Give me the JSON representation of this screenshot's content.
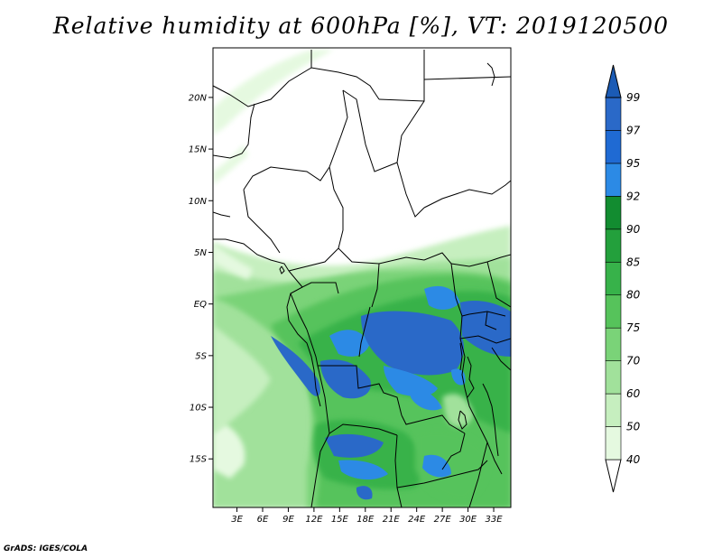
{
  "title": "Relative humidity at 600hPa [%], VT: 2019120500",
  "credit": "GrADS: IGES/COLA",
  "map": {
    "lat_ticks": [
      {
        "lat": 20,
        "label": "20N"
      },
      {
        "lat": 15,
        "label": "15N"
      },
      {
        "lat": 10,
        "label": "10N"
      },
      {
        "lat": 5,
        "label": "5N"
      },
      {
        "lat": 0,
        "label": "EQ"
      },
      {
        "lat": -5,
        "label": "5S"
      },
      {
        "lat": -10,
        "label": "10S"
      },
      {
        "lat": -15,
        "label": "15S"
      }
    ],
    "lon_ticks": [
      {
        "lon": 3,
        "label": "3E"
      },
      {
        "lon": 6,
        "label": "6E"
      },
      {
        "lon": 9,
        "label": "9E"
      },
      {
        "lon": 12,
        "label": "12E"
      },
      {
        "lon": 15,
        "label": "15E"
      },
      {
        "lon": 18,
        "label": "18E"
      },
      {
        "lon": 21,
        "label": "21E"
      },
      {
        "lon": 24,
        "label": "24E"
      },
      {
        "lon": 27,
        "label": "27E"
      },
      {
        "lon": 30,
        "label": "30E"
      },
      {
        "lon": 33,
        "label": "33E"
      }
    ],
    "lon_range": [
      0.2,
      35.0
    ],
    "lat_range": [
      -19.7,
      24.8
    ]
  },
  "colorbar": {
    "levels": [
      "40",
      "50",
      "60",
      "70",
      "75",
      "80",
      "85",
      "90",
      "92",
      "95",
      "97",
      "99"
    ],
    "colors": [
      "#ffffff",
      "#e5f9e0",
      "#c6efbf",
      "#a1e19b",
      "#7ad378",
      "#56c35b",
      "#37b24a",
      "#23a03c",
      "#128c30",
      "#2c8ae5",
      "#1f6ad3",
      "#2a69c8",
      "#1b5bb5"
    ]
  }
}
